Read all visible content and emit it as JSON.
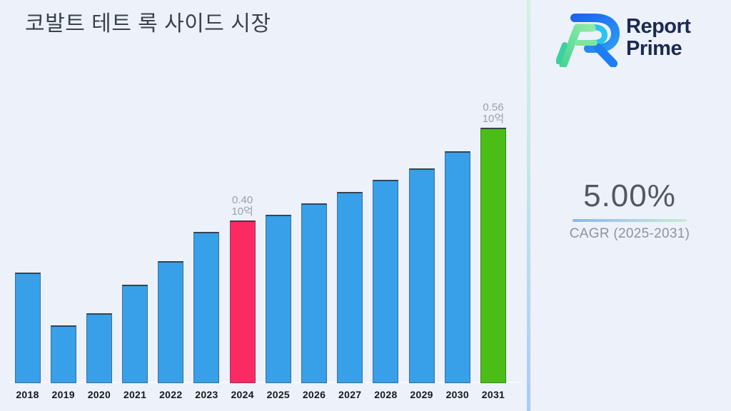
{
  "title": "코발트 테트 록 사이드 시장",
  "logo": {
    "line1": "Report",
    "line2": "Prime"
  },
  "stats": {
    "cagr_value": "5.00%",
    "cagr_label": "CAGR (2025-2031)"
  },
  "colors": {
    "background": "#ECF1FA",
    "bar_default": "#38A0E8",
    "bar_2024": "#FB2A63",
    "bar_2031": "#4ABE17",
    "divider_top": "#D3F2DF",
    "divider_bottom": "#AACAF1",
    "accent_underline_left": "#8FB3F3",
    "accent_underline_right": "#C6EECF",
    "logo_text": "#1C2950",
    "annotation_text": "#9AA1AA"
  },
  "chart_data": {
    "type": "bar",
    "title": "코발트 테트 록 사이드 시장",
    "categories": [
      "2018",
      "2019",
      "2020",
      "2021",
      "2022",
      "2023",
      "2024",
      "2025",
      "2026",
      "2027",
      "2028",
      "2029",
      "2030",
      "2031"
    ],
    "values": [
      0.31,
      0.22,
      0.24,
      0.29,
      0.33,
      0.38,
      0.4,
      0.41,
      0.43,
      0.45,
      0.47,
      0.49,
      0.52,
      0.56
    ],
    "unit": "10억",
    "xlabel": "",
    "ylabel": "",
    "ylim": [
      0.12,
      0.56
    ],
    "grid": false,
    "legend": false,
    "bar_color_default": "#38A0E8",
    "bar_colors": {
      "2024": "#FB2A63",
      "2031": "#4ABE17"
    },
    "annotations": [
      {
        "category": "2024",
        "lines": [
          "0.40",
          "10억"
        ]
      },
      {
        "category": "2031",
        "lines": [
          "0.56",
          "10억"
        ]
      }
    ]
  }
}
